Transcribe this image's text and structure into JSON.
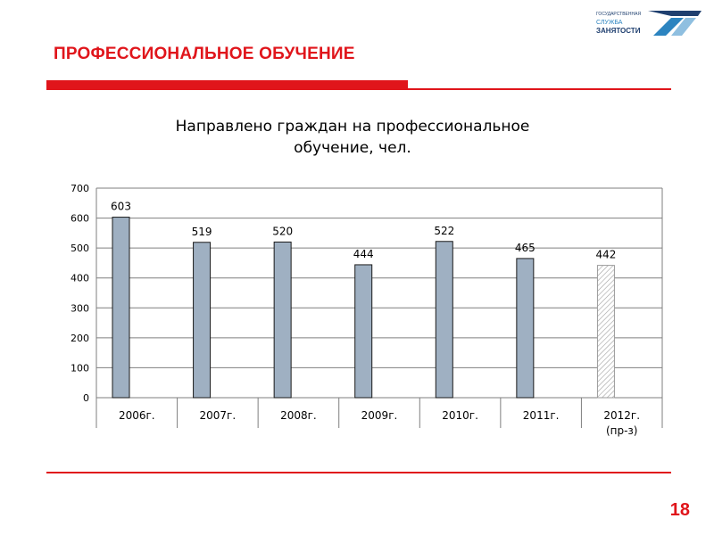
{
  "header": {
    "title": "ПРОФЕССИОНАЛЬНОЕ ОБУЧЕНИЕ",
    "logo_lines": [
      "ГОСУДАРСТВЕННАЯ",
      "СЛУЖБА",
      "ЗАНЯТОСТИ"
    ]
  },
  "colors": {
    "accent": "#e0151b",
    "bar_fill": "#9fb0c2",
    "bar_stroke": "#1a1a1a",
    "forecast_stroke": "#9a9a9a",
    "grid": "#7f7f7f"
  },
  "chart_data": {
    "type": "bar",
    "title": [
      "Направлено граждан на профессиональное",
      "обучение, чел."
    ],
    "categories": [
      [
        "2006г."
      ],
      [
        "2007г."
      ],
      [
        "2008г."
      ],
      [
        "2009г."
      ],
      [
        "2010г."
      ],
      [
        "2011г."
      ],
      [
        "2012г.",
        "(пр-з)"
      ]
    ],
    "values": [
      603,
      519,
      520,
      444,
      522,
      465,
      442
    ],
    "forecast": [
      false,
      false,
      false,
      false,
      false,
      false,
      true
    ],
    "ylim": [
      0,
      700
    ],
    "yticks": [
      0,
      100,
      200,
      300,
      400,
      500,
      600,
      700
    ],
    "grid": true
  },
  "footer": {
    "page_number": "18"
  }
}
